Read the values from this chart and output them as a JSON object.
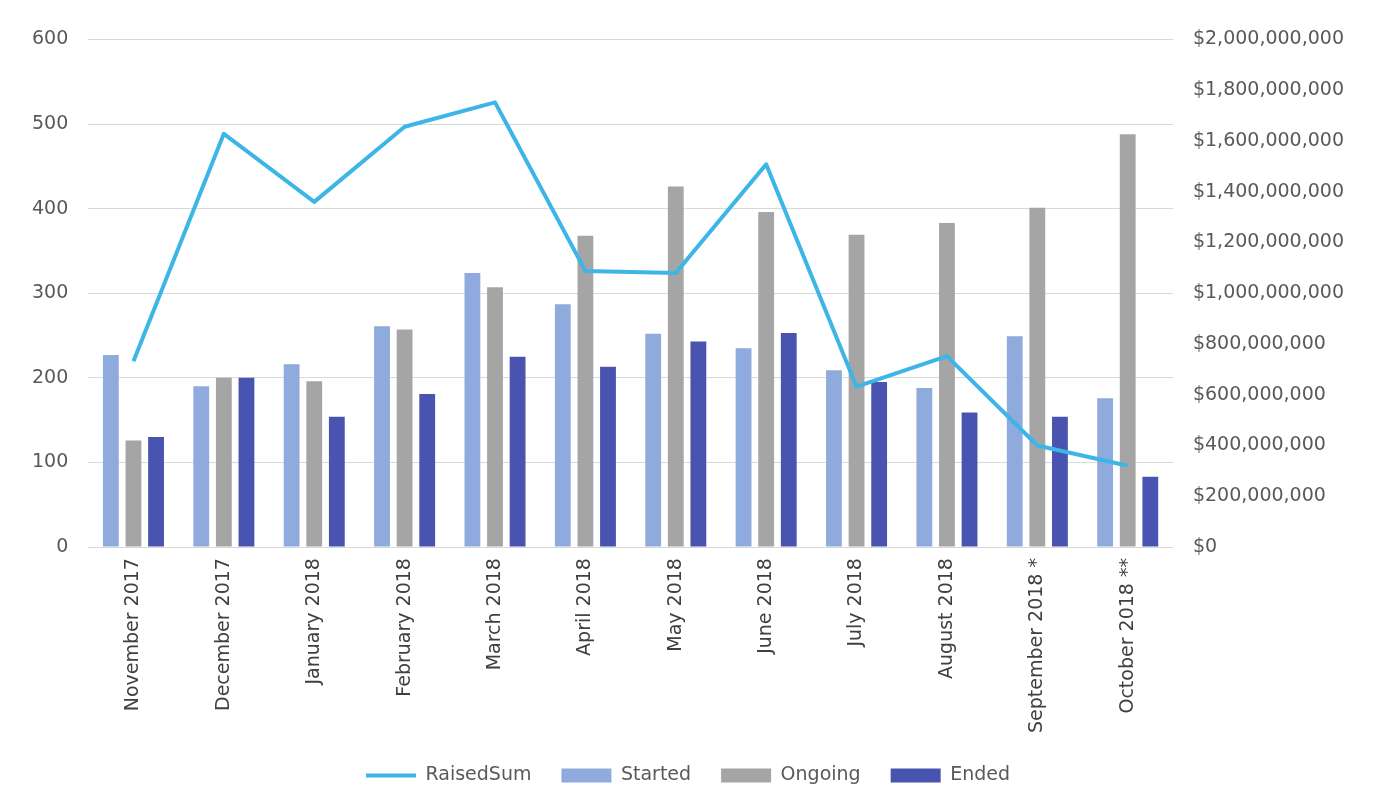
{
  "chart_data": {
    "type": "bar",
    "categories": [
      "November 2017",
      "December 2017",
      "January 2018",
      "February 2018",
      "March 2018",
      "April 2018",
      "May 2018",
      "June 2018",
      "July 2018",
      "August 2018",
      "September 2018 *",
      "October 2018 **"
    ],
    "series": [
      {
        "name": "Started",
        "color": "#8faadc",
        "values": [
          227,
          190,
          216,
          261,
          324,
          287,
          252,
          235,
          209,
          188,
          249,
          176
        ]
      },
      {
        "name": "Ongoing",
        "color": "#a5a5a5",
        "values": [
          126,
          200,
          196,
          257,
          307,
          368,
          426,
          396,
          369,
          383,
          401,
          488
        ]
      },
      {
        "name": "Ended",
        "color": "#4954b0",
        "values": [
          130,
          200,
          154,
          181,
          225,
          213,
          243,
          253,
          195,
          159,
          154,
          83
        ]
      },
      {
        "name": "RaisedSum",
        "type": "line",
        "axis": "y2",
        "color": "#3db5e6",
        "values": [
          732000000,
          1628000000,
          1360000000,
          1656000000,
          1752000000,
          1088000000,
          1080000000,
          1508000000,
          632000000,
          752000000,
          400000000,
          320000000
        ]
      }
    ],
    "ylim": [
      0,
      600
    ],
    "yticks": [
      0,
      100,
      200,
      300,
      400,
      500,
      600
    ],
    "y2lim": [
      0,
      2000000000
    ],
    "y2ticks": [
      {
        "value": 0,
        "label": "$0"
      },
      {
        "value": 200000000,
        "label": "$200,000,000"
      },
      {
        "value": 400000000,
        "label": "$400,000,000"
      },
      {
        "value": 600000000,
        "label": "$600,000,000"
      },
      {
        "value": 800000000,
        "label": "$800,000,000"
      },
      {
        "value": 1000000000,
        "label": "$1,000,000,000"
      },
      {
        "value": 1200000000,
        "label": "$1,200,000,000"
      },
      {
        "value": 1400000000,
        "label": "$1,400,000,000"
      },
      {
        "value": 1600000000,
        "label": "$1,600,000,000"
      },
      {
        "value": 1800000000,
        "label": "$1,800,000,000"
      },
      {
        "value": 2000000000,
        "label": "$2,000,000,000"
      }
    ],
    "grid": "y",
    "legend": "bottom",
    "marker": "none",
    "line_style": "solid"
  }
}
